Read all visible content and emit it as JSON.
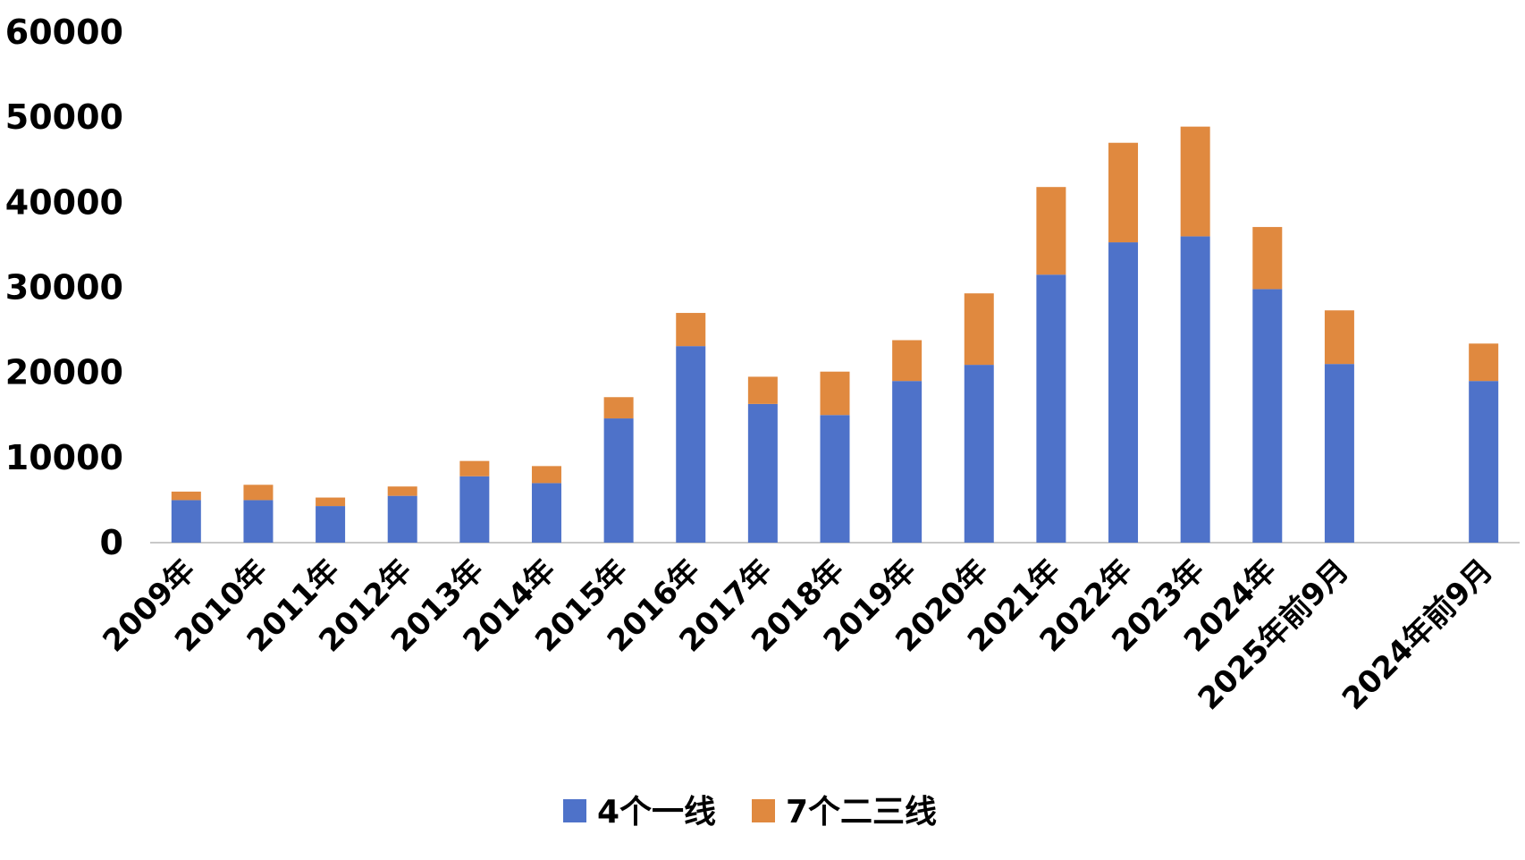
{
  "chart_data": {
    "type": "bar",
    "stacked": true,
    "categories": [
      "2009年",
      "2010年",
      "2011年",
      "2012年",
      "2013年",
      "2014年",
      "2015年",
      "2016年",
      "2017年",
      "2018年",
      "2019年",
      "2020年",
      "2021年",
      "2022年",
      "2023年",
      "2024年",
      "2025年前9月",
      "",
      "2024年前9月"
    ],
    "series": [
      {
        "name": "4个一线",
        "color": "#4E72C9",
        "values": [
          5000,
          5000,
          4300,
          5500,
          7800,
          7000,
          14600,
          23100,
          16300,
          15000,
          19000,
          20900,
          31500,
          35300,
          36000,
          29800,
          21000,
          null,
          19000
        ]
      },
      {
        "name": "7个二三线",
        "color": "#E0893F",
        "values": [
          1000,
          1800,
          1000,
          1100,
          1800,
          2000,
          2500,
          3900,
          3200,
          5100,
          4800,
          8400,
          10300,
          11700,
          12900,
          7300,
          6300,
          null,
          4400
        ]
      }
    ],
    "ylim": [
      0,
      60000
    ],
    "yticks": [
      0,
      10000,
      20000,
      30000,
      40000,
      50000,
      60000
    ],
    "ytick_labels": [
      "0",
      "10000",
      "20000",
      "30000",
      "40000",
      "50000",
      "60000"
    ],
    "xlabel": "",
    "ylabel": "",
    "grid": false,
    "legend_position": "bottom-center"
  }
}
